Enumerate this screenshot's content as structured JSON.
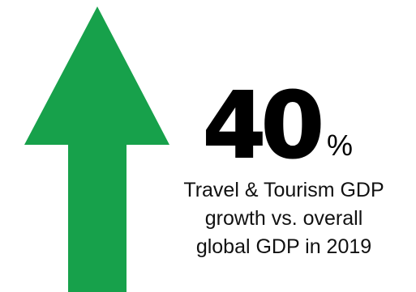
{
  "colors": {
    "arrow": "#17A14B",
    "text": "#000000",
    "background": "#FFFFFF"
  },
  "icon": "up-arrow-icon",
  "stat": {
    "value": "40",
    "unit": "%"
  },
  "caption": {
    "lines": [
      "Travel & Tourism GDP",
      "growth vs. overall",
      "global GDP in 2019"
    ]
  }
}
